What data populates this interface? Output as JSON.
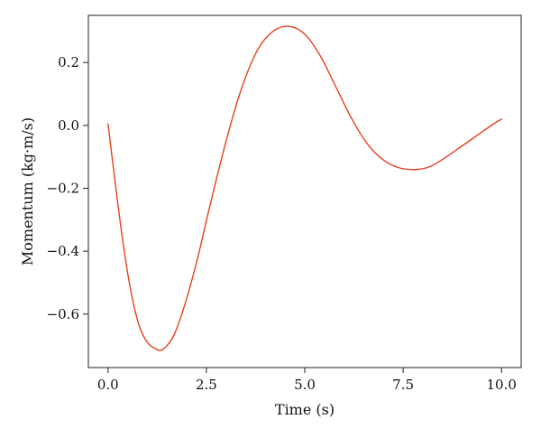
{
  "chart_data": {
    "type": "line",
    "title": "",
    "xlabel": "Time (s)",
    "ylabel": "Momentum (kg·m/s)",
    "xlim": [
      -0.5,
      10.5
    ],
    "ylim": [
      -0.77,
      0.35
    ],
    "x_ticks": [
      0.0,
      2.5,
      5.0,
      7.5,
      10.0
    ],
    "x_tick_labels": [
      "0.0",
      "2.5",
      "5.0",
      "7.5",
      "10.0"
    ],
    "y_ticks": [
      0.2,
      0.0,
      -0.2,
      -0.4,
      -0.6
    ],
    "y_tick_labels": [
      "0.2",
      "0.0",
      "−0.2",
      "−0.4",
      "−0.6"
    ],
    "grid": false,
    "series": [
      {
        "color": "#e8401c",
        "x": [
          0.0,
          0.2,
          0.4,
          0.6,
          0.8,
          1.0,
          1.2,
          1.35,
          1.5,
          1.7,
          2.0,
          2.3,
          2.6,
          3.0,
          3.4,
          3.8,
          4.2,
          4.6,
          5.0,
          5.4,
          5.8,
          6.2,
          6.6,
          7.0,
          7.4,
          7.85,
          8.2,
          8.6,
          9.0,
          9.4,
          9.8,
          10.0
        ],
        "y": [
          0.005,
          -0.2,
          -0.39,
          -0.54,
          -0.64,
          -0.69,
          -0.71,
          -0.715,
          -0.7,
          -0.66,
          -0.55,
          -0.41,
          -0.25,
          -0.05,
          0.12,
          0.24,
          0.3,
          0.315,
          0.29,
          0.22,
          0.12,
          0.02,
          -0.06,
          -0.11,
          -0.135,
          -0.14,
          -0.13,
          -0.1,
          -0.065,
          -0.03,
          0.005,
          0.02
        ]
      }
    ]
  }
}
